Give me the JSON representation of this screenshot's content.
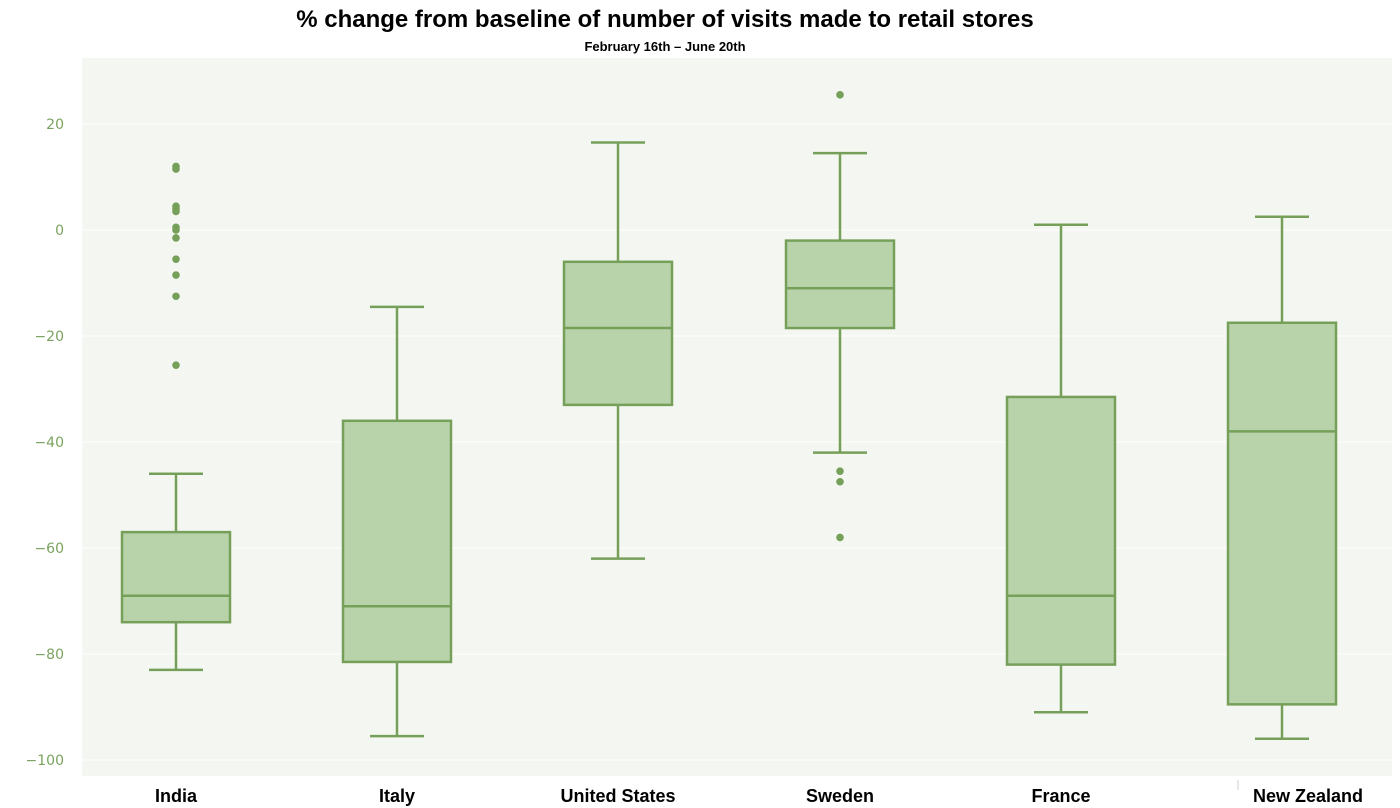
{
  "chart_data": {
    "type": "box",
    "title": "% change from baseline of number of  visits made to retail stores",
    "subtitle": "February 16th – June 20th",
    "xlabel": "",
    "ylabel": "",
    "ylim": [
      -103,
      33
    ],
    "yticks": [
      20,
      0,
      -20,
      -40,
      -60,
      -80,
      -100
    ],
    "ytick_labels": [
      "20",
      "0",
      "−20",
      "−40",
      "−60",
      "−80",
      "−100"
    ],
    "grid": true,
    "colors": {
      "box_fill": "#b8d2a9",
      "box_stroke": "#76a05a",
      "plot_bg": "#f4f7f1",
      "tick_text": "#7aa35f"
    },
    "categories": [
      "India",
      "Italy",
      "United States",
      "Sweden",
      "France",
      "New Zealand"
    ],
    "boxes": [
      {
        "name": "India",
        "min": -83,
        "q1": -74,
        "median": -69,
        "q3": -57,
        "max": -46,
        "outliers": [
          12,
          11.5,
          4.5,
          4,
          3.5,
          0.5,
          0,
          -1.5,
          -5.5,
          -8.5,
          -12.5,
          -25.5
        ]
      },
      {
        "name": "Italy",
        "min": -95.5,
        "q1": -81.5,
        "median": -71,
        "q3": -36,
        "max": -14.5,
        "outliers": []
      },
      {
        "name": "United States",
        "min": -62,
        "q1": -33,
        "median": -18.5,
        "q3": -6,
        "max": 16.5,
        "outliers": []
      },
      {
        "name": "Sweden",
        "min": -42,
        "q1": -18.5,
        "median": -11,
        "q3": -2,
        "max": 14.5,
        "outliers": [
          25.5,
          -45.5,
          -47.5,
          -58
        ]
      },
      {
        "name": "France",
        "min": -91,
        "q1": -82,
        "median": -69,
        "q3": -31.5,
        "max": 1,
        "outliers": []
      },
      {
        "name": "New Zealand",
        "min": -96,
        "q1": -89.5,
        "median": -38,
        "q3": -17.5,
        "max": 2.5,
        "outliers": []
      }
    ]
  }
}
